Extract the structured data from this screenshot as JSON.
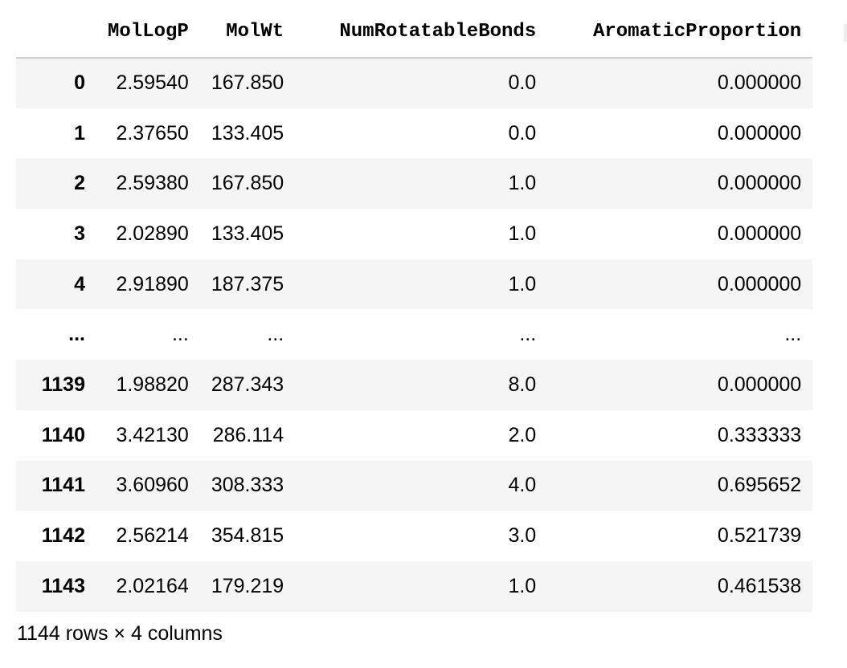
{
  "table": {
    "columns": {
      "index": "",
      "c1": "MolLogP",
      "c2": "MolWt",
      "c3": "NumRotatableBonds",
      "c4": "AromaticProportion"
    },
    "rows": [
      {
        "index": "0",
        "c1": "2.59540",
        "c2": "167.850",
        "c3": "0.0",
        "c4": "0.000000"
      },
      {
        "index": "1",
        "c1": "2.37650",
        "c2": "133.405",
        "c3": "0.0",
        "c4": "0.000000"
      },
      {
        "index": "2",
        "c1": "2.59380",
        "c2": "167.850",
        "c3": "1.0",
        "c4": "0.000000"
      },
      {
        "index": "3",
        "c1": "2.02890",
        "c2": "133.405",
        "c3": "1.0",
        "c4": "0.000000"
      },
      {
        "index": "4",
        "c1": "2.91890",
        "c2": "187.375",
        "c3": "1.0",
        "c4": "0.000000"
      },
      {
        "index": "...",
        "c1": "...",
        "c2": "...",
        "c3": "...",
        "c4": "..."
      },
      {
        "index": "1139",
        "c1": "1.98820",
        "c2": "287.343",
        "c3": "8.0",
        "c4": "0.000000"
      },
      {
        "index": "1140",
        "c1": "3.42130",
        "c2": "286.114",
        "c3": "2.0",
        "c4": "0.333333"
      },
      {
        "index": "1141",
        "c1": "3.60960",
        "c2": "308.333",
        "c3": "4.0",
        "c4": "0.695652"
      },
      {
        "index": "1142",
        "c1": "2.56214",
        "c2": "354.815",
        "c3": "3.0",
        "c4": "0.521739"
      },
      {
        "index": "1143",
        "c1": "2.02164",
        "c2": "179.219",
        "c3": "1.0",
        "c4": "0.461538"
      }
    ]
  },
  "footer": {
    "shape_text": "1144 rows × 4 columns"
  }
}
